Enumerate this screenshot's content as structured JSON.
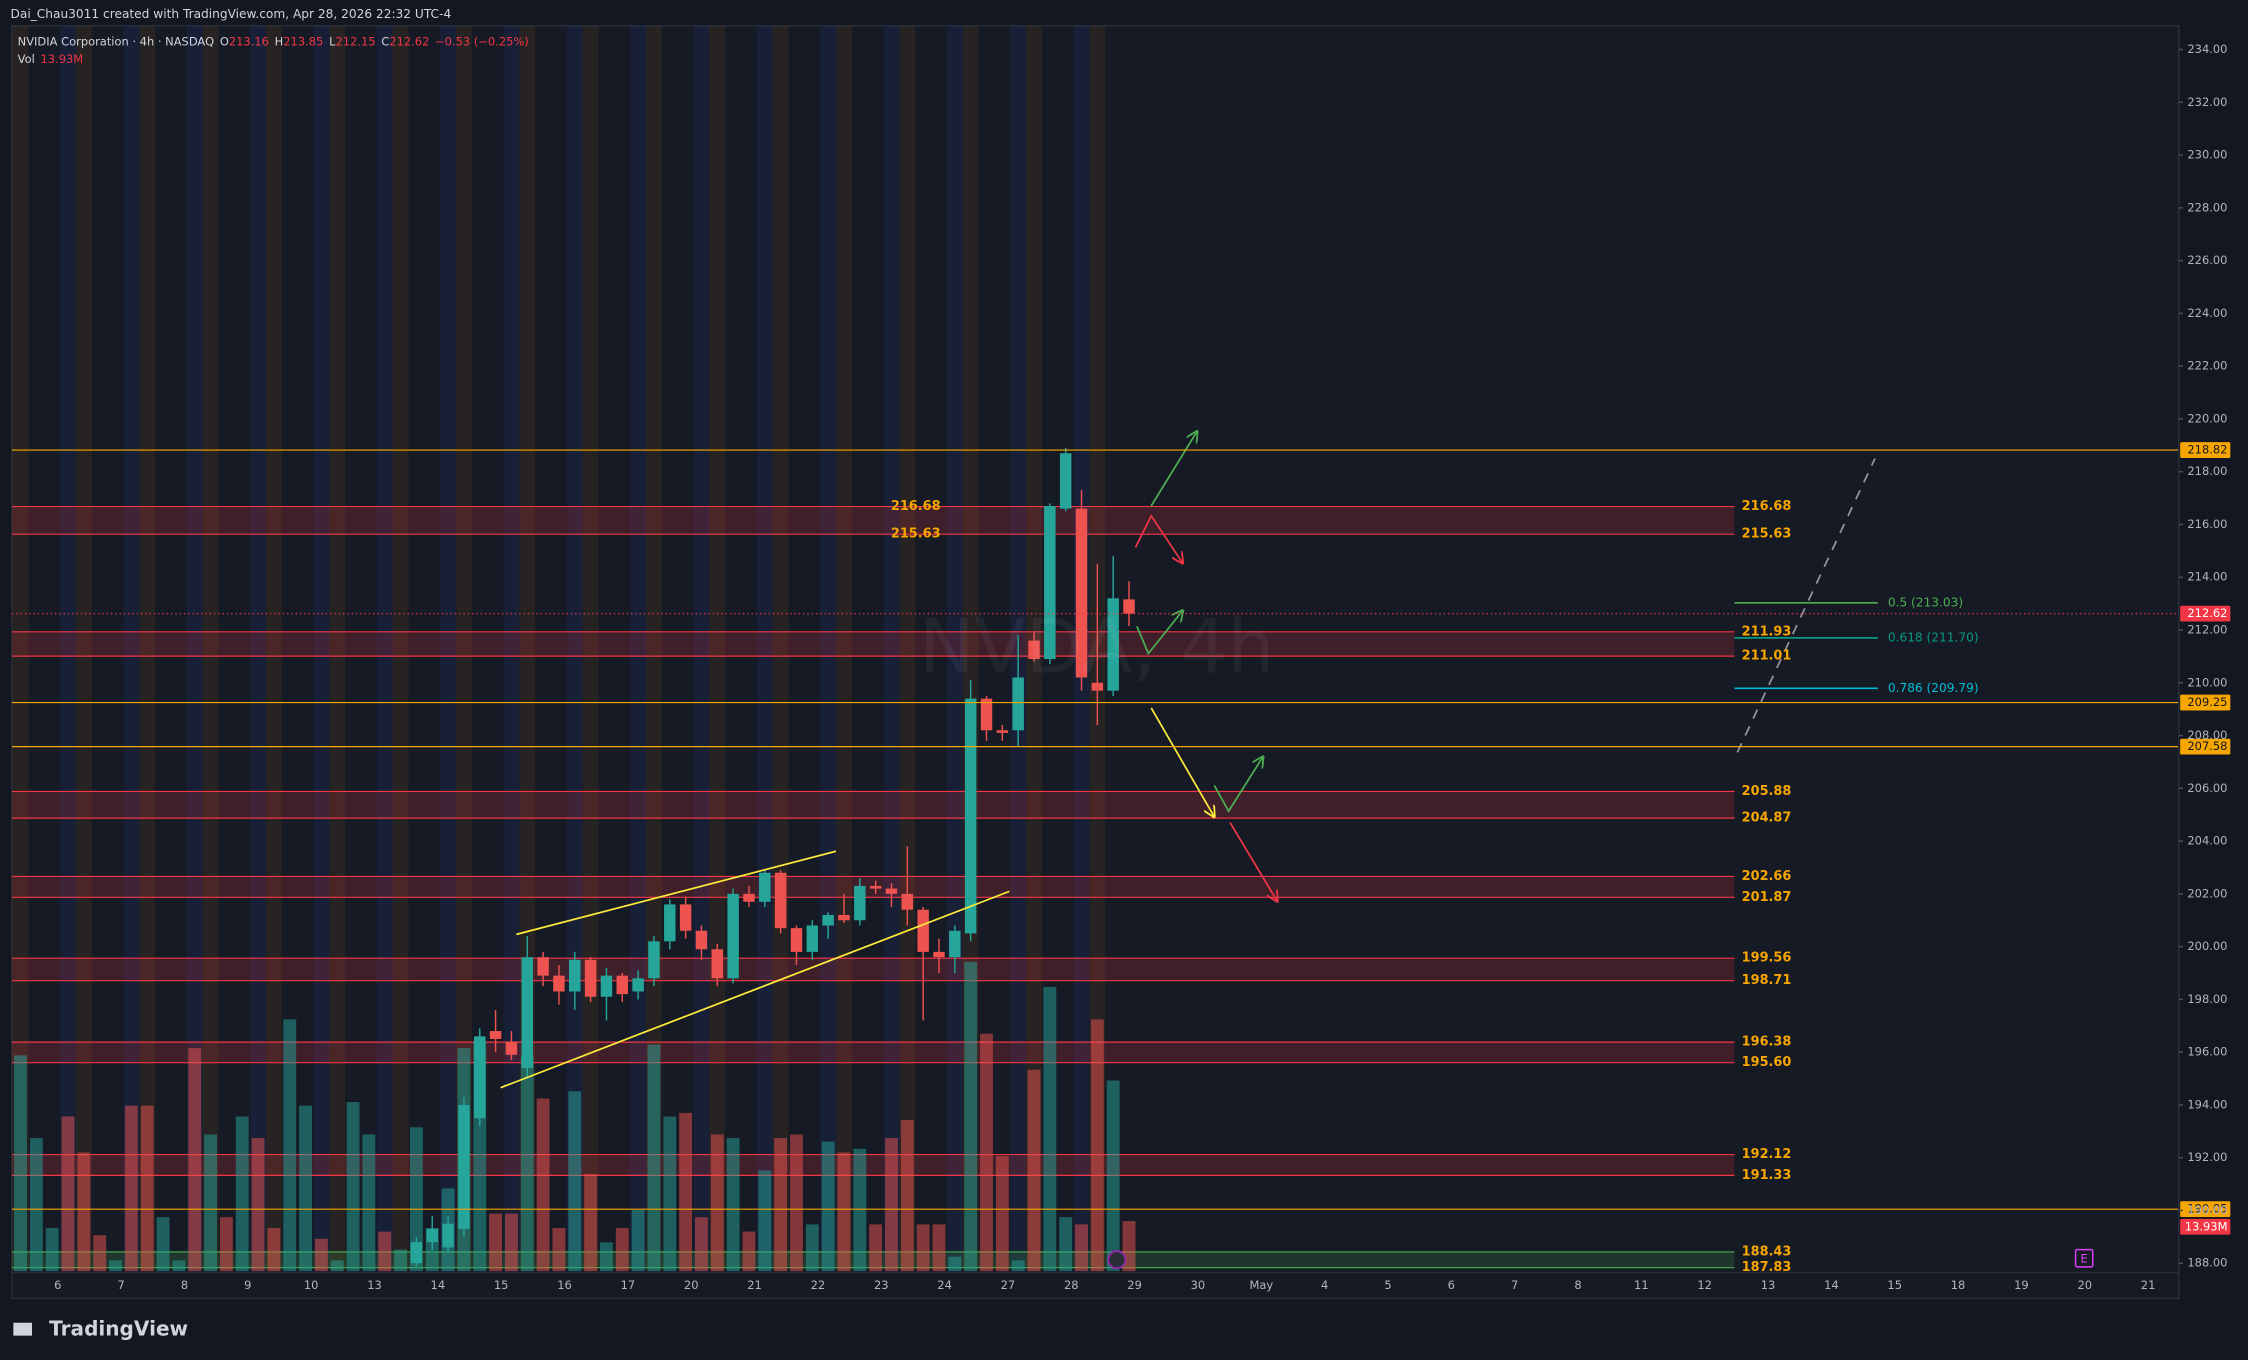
{
  "header": "Dai_Chau3011 created with TradingView.com, Apr 28, 2026 22:32 UTC-4",
  "footer_logo": "TradingView",
  "chart_data": {
    "type": "candlestick",
    "symbol": "NVIDIA Corporation · 4h · NASDAQ",
    "watermark": "NVDA, 4h",
    "legend": [
      {
        "prefix": "O",
        "value": 213.16
      },
      {
        "prefix": "H",
        "value": 213.85
      },
      {
        "prefix": "L",
        "value": 212.15
      },
      {
        "prefix": "C",
        "value": 212.62
      }
    ],
    "change": "−0.53 (−0.25%)",
    "volume_title": "Vol",
    "volume_label": "13.93M",
    "up_color": "#26a69a",
    "down_color": "#ef5350",
    "ylim": [
      187.7,
      234.9
    ],
    "yticks": [
      {
        "value": 188,
        "label": "188.00"
      },
      {
        "value": 190,
        "label": "190.00"
      },
      {
        "value": 192,
        "label": "192.00"
      },
      {
        "value": 194,
        "label": "194.00"
      },
      {
        "value": 196,
        "label": "196.00"
      },
      {
        "value": 198,
        "label": "198.00"
      },
      {
        "value": 200,
        "label": "200.00"
      },
      {
        "value": 202,
        "label": "202.00"
      },
      {
        "value": 204,
        "label": "204.00"
      },
      {
        "value": 206,
        "label": "206.00"
      },
      {
        "value": 208,
        "label": "208.00"
      },
      {
        "value": 210,
        "label": "210.00"
      },
      {
        "value": 212,
        "label": "212.00"
      },
      {
        "value": 214,
        "label": "214.00"
      },
      {
        "value": 216,
        "label": "216.00"
      },
      {
        "value": 218,
        "label": "218.00"
      },
      {
        "value": 220,
        "label": "220.00"
      },
      {
        "value": 222,
        "label": "222.00"
      },
      {
        "value": 224,
        "label": "224.00"
      },
      {
        "value": 226,
        "label": "226.00"
      },
      {
        "value": 228,
        "label": "228.00"
      },
      {
        "value": 230,
        "label": "230.00"
      },
      {
        "value": 232,
        "label": "232.00"
      },
      {
        "value": 234,
        "label": "234.00"
      }
    ],
    "x_labels": [
      "6",
      "7",
      "8",
      "9",
      "10",
      "13",
      "14",
      "15",
      "16",
      "17",
      "20",
      "21",
      "22",
      "23",
      "24",
      "27",
      "28",
      "29",
      "30",
      "May",
      "4",
      "5",
      "6",
      "7",
      "8",
      "11",
      "12",
      "13",
      "14",
      "15",
      "18",
      "19",
      "20",
      "21"
    ],
    "candles": {
      "open": [
        null,
        null,
        null,
        null,
        null,
        null,
        null,
        null,
        null,
        null,
        null,
        null,
        null,
        null,
        null,
        null,
        null,
        null,
        null,
        null,
        null,
        null,
        null,
        null,
        null,
        188.0,
        188.8,
        188.6,
        189.3,
        193.5,
        196.8,
        196.4,
        195.4,
        199.6,
        198.9,
        198.3,
        199.5,
        198.1,
        198.9,
        198.3,
        198.8,
        200.2,
        201.6,
        200.6,
        199.9,
        198.8,
        202.0,
        201.7,
        202.8,
        200.7,
        199.8,
        200.8,
        201.2,
        201.0,
        202.3,
        202.2,
        202.0,
        201.4,
        199.8,
        199.6,
        200.5,
        209.4,
        208.2,
        208.2,
        211.6,
        210.9,
        216.6,
        216.6,
        210.0,
        209.7,
        213.16
      ],
      "high": [
        null,
        null,
        null,
        null,
        null,
        null,
        null,
        null,
        null,
        null,
        null,
        null,
        null,
        null,
        null,
        null,
        null,
        null,
        null,
        null,
        null,
        null,
        null,
        null,
        null,
        189.0,
        189.8,
        189.8,
        194.3,
        196.9,
        197.6,
        196.8,
        200.4,
        199.8,
        199.3,
        199.8,
        199.6,
        199.2,
        199.0,
        199.1,
        200.4,
        201.8,
        201.9,
        200.8,
        200.1,
        202.2,
        202.3,
        202.9,
        202.9,
        200.8,
        201.0,
        201.3,
        202.0,
        202.6,
        202.5,
        202.4,
        203.8,
        201.5,
        200.3,
        200.8,
        210.1,
        209.5,
        208.4,
        211.8,
        211.9,
        216.8,
        218.9,
        217.3,
        214.5,
        214.8,
        213.85
      ],
      "low": [
        null,
        null,
        null,
        null,
        null,
        null,
        null,
        null,
        null,
        null,
        null,
        null,
        null,
        null,
        null,
        null,
        null,
        null,
        null,
        null,
        null,
        null,
        null,
        null,
        null,
        187.9,
        188.5,
        188.4,
        189.0,
        193.2,
        196.0,
        195.7,
        195.0,
        198.5,
        197.8,
        197.6,
        197.9,
        197.2,
        197.9,
        198.0,
        198.5,
        199.9,
        200.3,
        199.5,
        198.5,
        198.6,
        201.5,
        201.5,
        200.5,
        199.3,
        199.5,
        200.3,
        200.9,
        200.8,
        202.0,
        201.5,
        200.8,
        197.2,
        199.0,
        199.0,
        200.2,
        207.8,
        207.8,
        207.6,
        210.8,
        210.7,
        216.5,
        209.7,
        208.4,
        209.5,
        212.15
      ],
      "close": [
        null,
        null,
        null,
        null,
        null,
        null,
        null,
        null,
        null,
        null,
        null,
        null,
        null,
        null,
        null,
        null,
        null,
        null,
        null,
        null,
        null,
        null,
        null,
        null,
        null,
        188.8,
        189.3,
        189.5,
        194.0,
        196.6,
        196.5,
        195.9,
        199.6,
        198.9,
        198.3,
        199.5,
        198.1,
        198.9,
        198.2,
        198.8,
        200.2,
        201.6,
        200.6,
        199.9,
        198.8,
        202.0,
        201.7,
        202.8,
        200.7,
        199.8,
        200.8,
        201.2,
        201.0,
        202.3,
        202.2,
        202.0,
        201.4,
        199.8,
        199.6,
        200.6,
        209.4,
        208.2,
        208.1,
        210.2,
        210.9,
        216.7,
        218.7,
        210.2,
        209.7,
        213.2,
        212.62
      ]
    },
    "volume": {
      "values": [
        60,
        37,
        12,
        43,
        33,
        10,
        3,
        46,
        46,
        15,
        3,
        62,
        38,
        15,
        43,
        37,
        12,
        70,
        46,
        9,
        3,
        47,
        38,
        11,
        6,
        40,
        12,
        23,
        62,
        64,
        16,
        16,
        60,
        48,
        12,
        50,
        27,
        8,
        12,
        17,
        63,
        43,
        44,
        15,
        38,
        37,
        11,
        28,
        37,
        38,
        13,
        36,
        33,
        34,
        13,
        37,
        42,
        13,
        13,
        4,
        86,
        66,
        32,
        3,
        56,
        79,
        15,
        13,
        70,
        53,
        13.93
      ],
      "colors": [
        "#26a69a",
        "#26a69a",
        "#26a69a",
        "#ef5350",
        "#ef5350",
        "#ef5350",
        "#26a69a",
        "#ef5350",
        "#ef5350",
        "#26a69a",
        "#26a69a",
        "#ef5350",
        "#26a69a",
        "#ef5350",
        "#26a69a",
        "#ef5350",
        "#ef5350",
        "#26a69a",
        "#26a69a",
        "#ef5350",
        "#26a69a",
        "#26a69a",
        "#26a69a",
        "#ef5350",
        "#26a69a",
        "#26a69a",
        "#26a69a",
        "#26a69a",
        "#26a69a",
        "#26a69a",
        "#ef5350",
        "#ef5350",
        "#26a69a",
        "#ef5350",
        "#ef5350",
        "#26a69a",
        "#ef5350",
        "#26a69a",
        "#ef5350",
        "#26a69a",
        "#26a69a",
        "#26a69a",
        "#ef5350",
        "#ef5350",
        "#ef5350",
        "#26a69a",
        "#ef5350",
        "#26a69a",
        "#ef5350",
        "#ef5350",
        "#26a69a",
        "#26a69a",
        "#ef5350",
        "#26a69a",
        "#ef5350",
        "#ef5350",
        "#ef5350",
        "#ef5350",
        "#ef5350",
        "#26a69a",
        "#26a69a",
        "#ef5350",
        "#ef5350",
        "#26a69a",
        "#ef5350",
        "#26a69a",
        "#26a69a",
        "#ef5350",
        "#ef5350",
        "#26a69a",
        "#ef5350"
      ]
    },
    "zones": [
      {
        "top": {
          "value": 216.68,
          "label": "216.68"
        },
        "bottom": {
          "value": 215.63,
          "label": "215.63"
        },
        "color": "#f23645"
      },
      {
        "top": {
          "value": 211.93,
          "label": "211.93"
        },
        "bottom": {
          "value": 211.01,
          "label": "211.01"
        },
        "color": "#f23645"
      },
      {
        "top": {
          "value": 205.88,
          "label": "205.88"
        },
        "bottom": {
          "value": 204.87,
          "label": "204.87"
        },
        "color": "#f23645"
      },
      {
        "top": {
          "value": 202.66,
          "label": "202.66"
        },
        "bottom": {
          "value": 201.87,
          "label": "201.87"
        },
        "color": "#f23645"
      },
      {
        "top": {
          "value": 199.56,
          "label": "199.56"
        },
        "bottom": {
          "value": 198.71,
          "label": "198.71"
        },
        "color": "#f23645"
      },
      {
        "top": {
          "value": 196.38,
          "label": "196.38"
        },
        "bottom": {
          "value": 195.6,
          "label": "195.60"
        },
        "color": "#f23645"
      },
      {
        "top": {
          "value": 192.12,
          "label": "192.12"
        },
        "bottom": {
          "value": 191.33,
          "label": "191.33"
        },
        "color": "#f23645"
      },
      {
        "top": {
          "value": 188.43,
          "label": "188.43"
        },
        "bottom": {
          "value": 187.83,
          "label": "187.83"
        },
        "color": "#4caf50"
      }
    ],
    "levels": [
      218.82,
      209.25,
      207.58,
      190.05
    ],
    "level_color": "#f7a600",
    "last_price": 212.62,
    "last_color": "#f23645",
    "fib": [
      {
        "value": 213.03,
        "label": "0.5 (213.03)",
        "color": "#4caf50"
      },
      {
        "value": 211.7,
        "label": "0.618 (211.70)",
        "color": "#089981"
      },
      {
        "value": 209.79,
        "label": "0.786 (209.79)",
        "color": "#00bcd4"
      }
    ],
    "earnings_marker": "E"
  }
}
